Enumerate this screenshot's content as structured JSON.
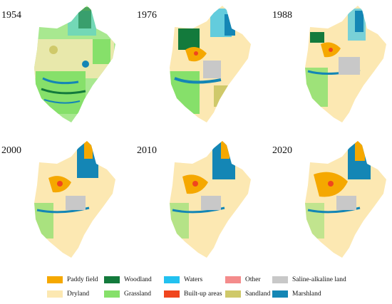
{
  "panels": [
    {
      "year": "1954"
    },
    {
      "year": "1976"
    },
    {
      "year": "1988"
    },
    {
      "year": "2000"
    },
    {
      "year": "2010"
    },
    {
      "year": "2020"
    }
  ],
  "legend": [
    {
      "label": "Paddy field",
      "color": "#f5a800"
    },
    {
      "label": "Dryland",
      "color": "#fce8b2"
    },
    {
      "label": "Woodland",
      "color": "#137a3c"
    },
    {
      "label": "Grassland",
      "color": "#86e06a"
    },
    {
      "label": "Waters",
      "color": "#22c1f0"
    },
    {
      "label": "Built-up areas",
      "color": "#f0451e"
    },
    {
      "label": "Other",
      "color": "#f48c8c"
    },
    {
      "label": "Sandland",
      "color": "#cfc96a"
    },
    {
      "label": "Saline-alkaline land",
      "color": "#c8c8c8"
    },
    {
      "label": "Marshland",
      "color": "#1486b5"
    }
  ]
}
